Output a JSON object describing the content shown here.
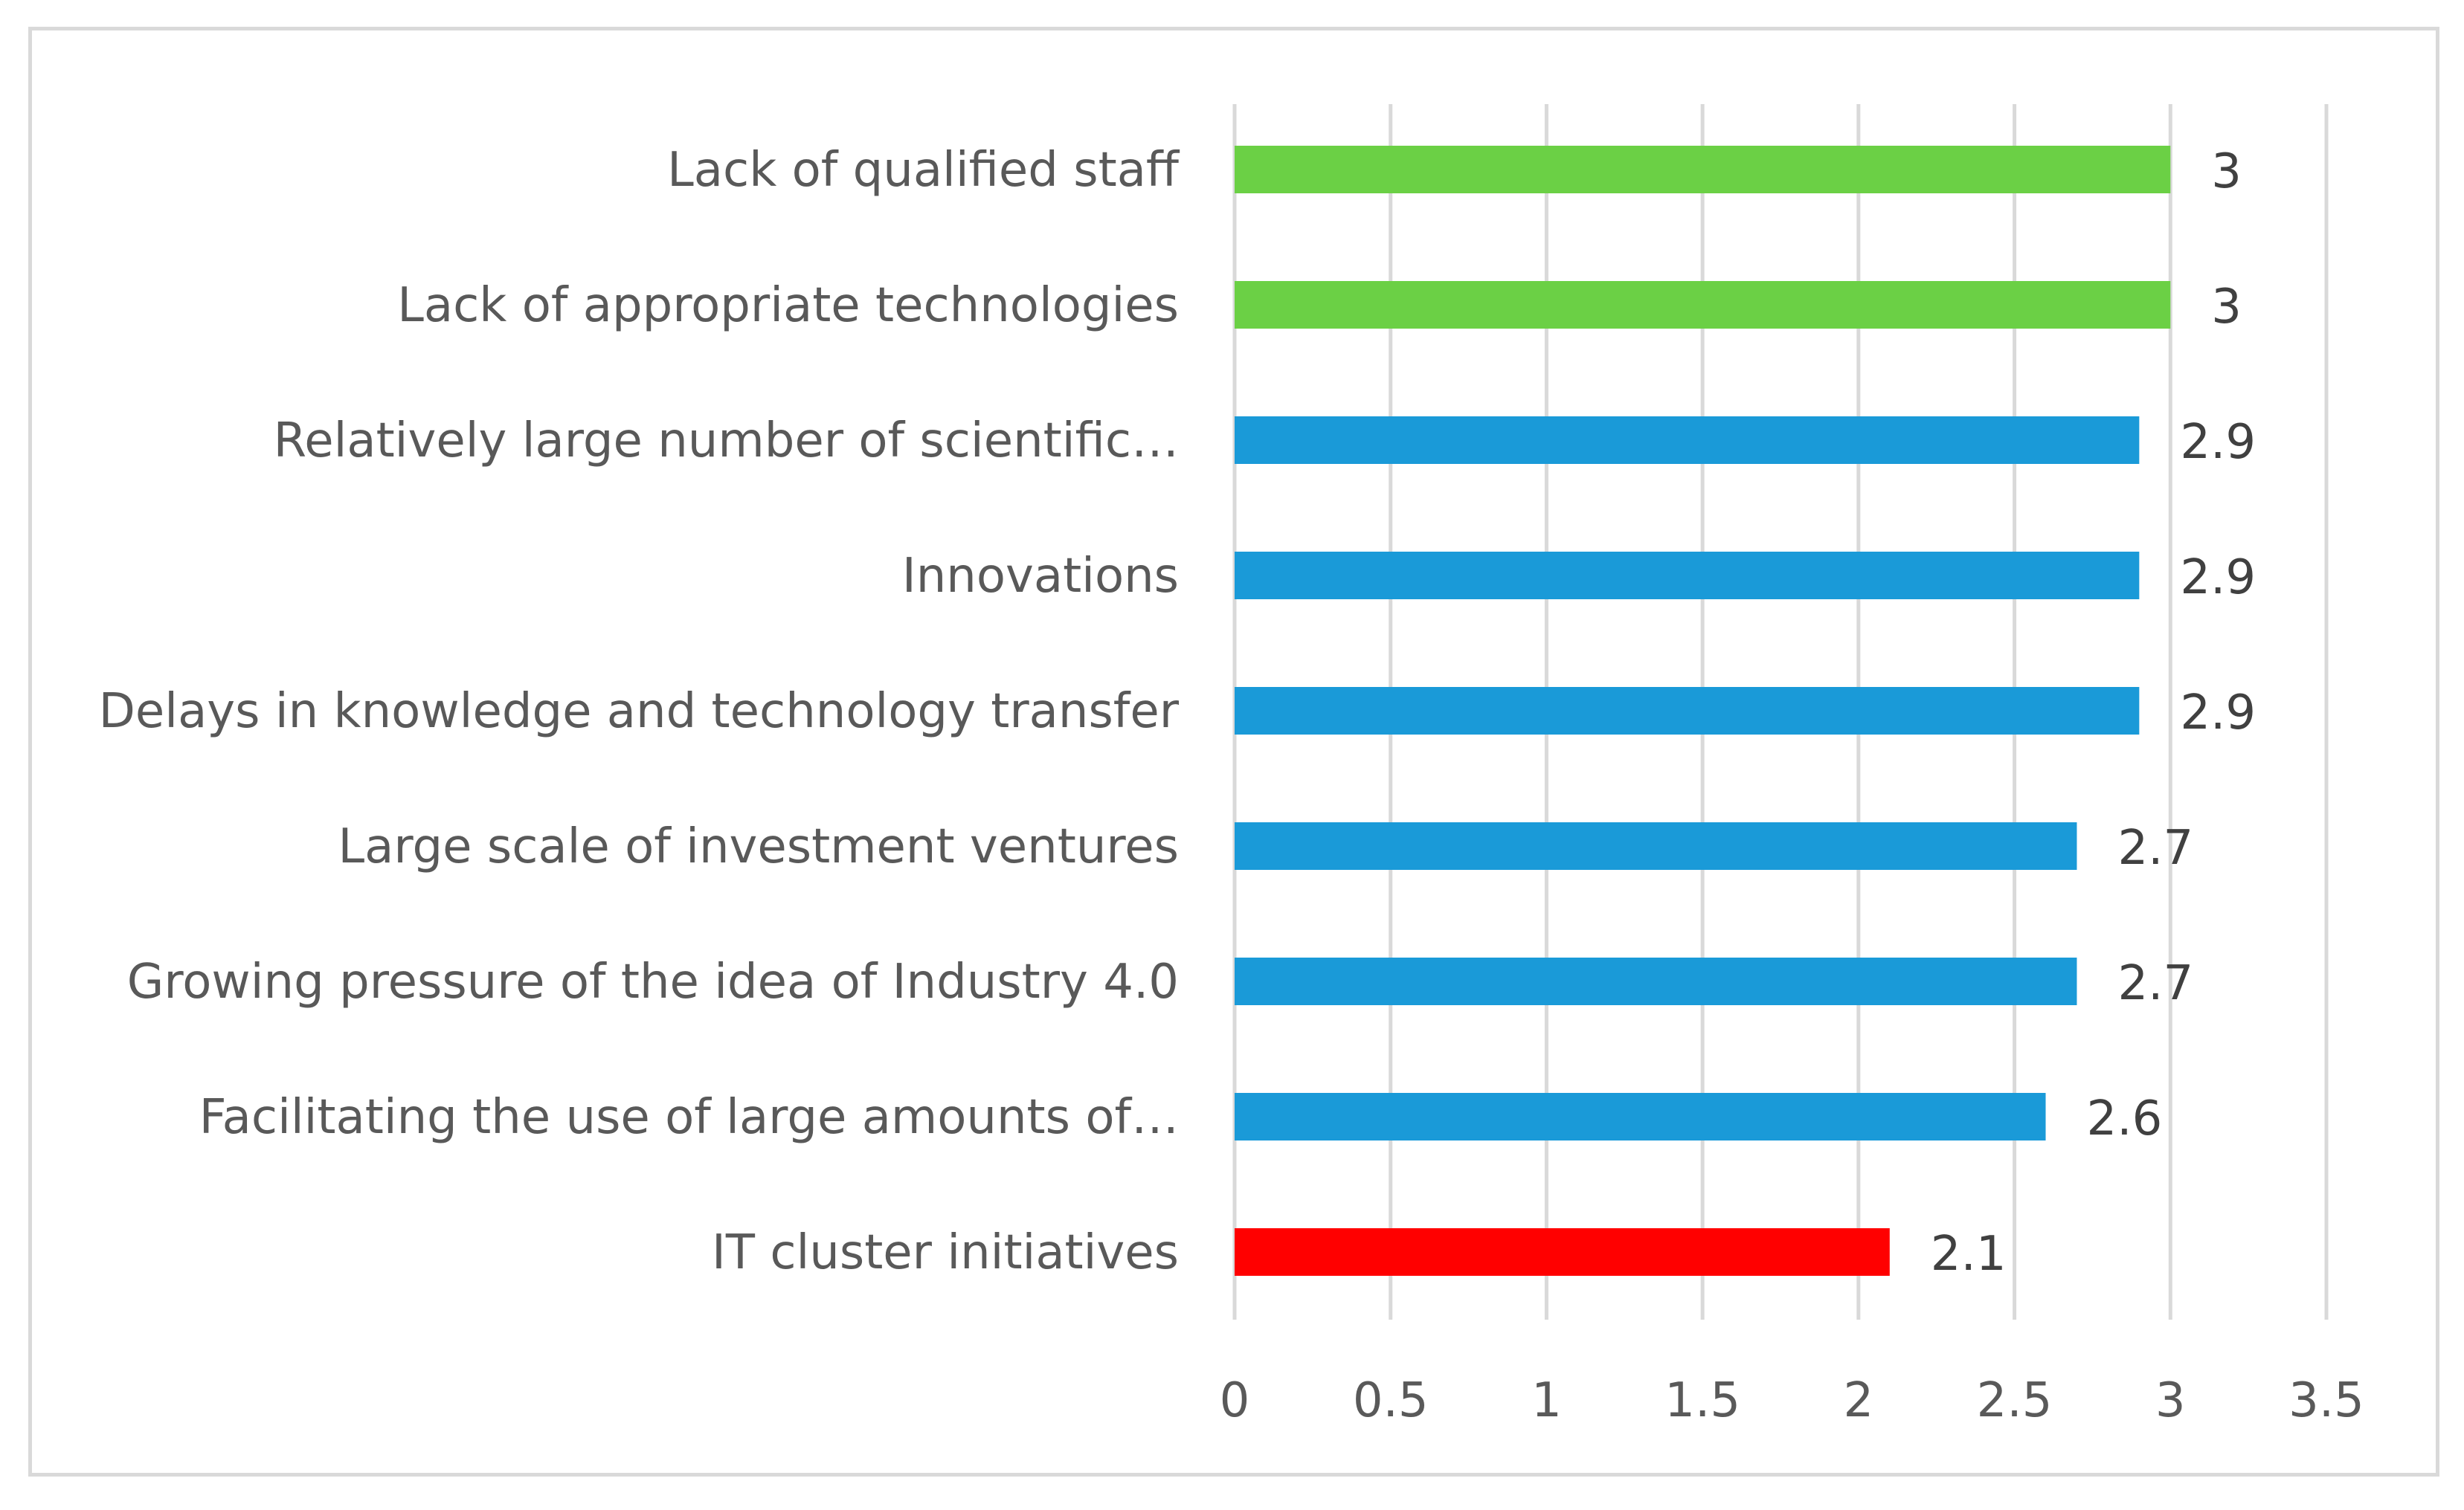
{
  "chart_data": {
    "type": "bar",
    "orientation": "horizontal",
    "title": "",
    "xlabel": "",
    "ylabel": "",
    "xlim": [
      0,
      3.5
    ],
    "grid": true,
    "legend": "none",
    "categories": [
      "Lack of qualified staff",
      "Lack of appropriate technologies",
      "Relatively large number of scientific…",
      "Innovations",
      "Delays in knowledge and technology transfer",
      "Large scale of investment ventures",
      "Growing pressure of the idea of Industry 4.0",
      "Facilitating the use of large amounts of…",
      "IT cluster initiatives"
    ],
    "values": [
      3,
      3,
      2.9,
      2.9,
      2.9,
      2.7,
      2.7,
      2.6,
      2.1
    ],
    "value_labels": [
      "3",
      "3",
      "2.9",
      "2.9",
      "2.9",
      "2.7",
      "2.7",
      "2.6",
      "2.1"
    ],
    "bar_colors": [
      "#6bd045",
      "#6bd045",
      "#1a9ad8",
      "#1a9ad8",
      "#1a9ad8",
      "#1a9ad8",
      "#1a9ad8",
      "#1a9ad8",
      "#ff0000"
    ],
    "x_ticks": [
      0,
      0.5,
      1,
      1.5,
      2,
      2.5,
      3,
      3.5
    ],
    "x_tick_labels": [
      "0",
      "0.5",
      "1",
      "1.5",
      "2",
      "2.5",
      "3",
      "3.5"
    ]
  }
}
